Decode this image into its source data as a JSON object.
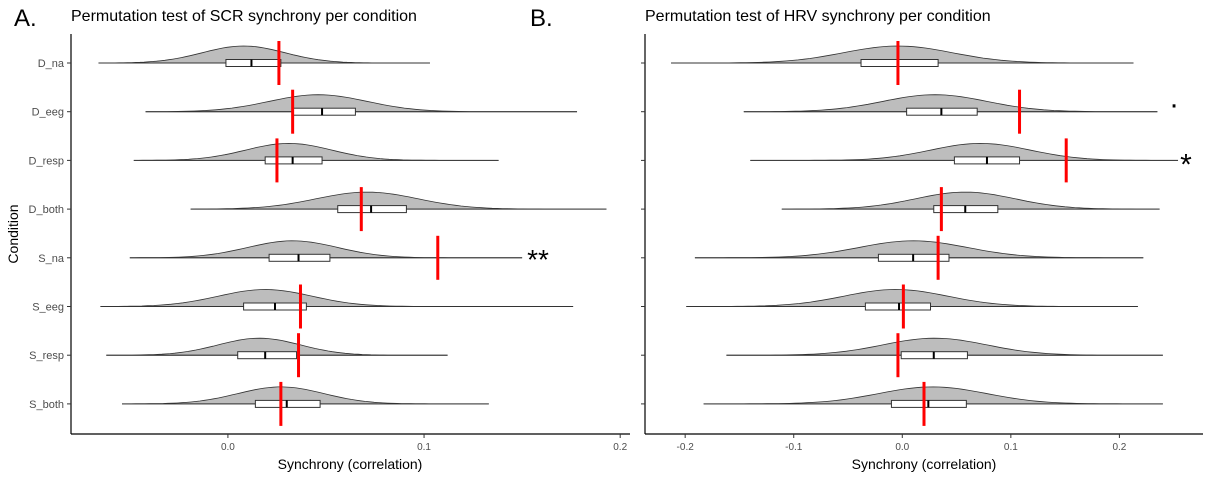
{
  "panel_labels": [
    "A.",
    "B."
  ],
  "shared_ylabel": "Condition",
  "chart_data": [
    {
      "type": "violin-boxplot",
      "title": "Permutation test of SCR synchrony per condition",
      "xlabel": "Synchrony (correlation)",
      "ylabel": "Condition",
      "categories": [
        "D_na",
        "D_eeg",
        "D_resp",
        "D_both",
        "S_na",
        "S_eeg",
        "S_resp",
        "S_both"
      ],
      "xlim": [
        -0.08,
        0.205
      ],
      "xticks": [
        0,
        0.1,
        0.2
      ],
      "xtick_labels": [
        "0.0",
        "0.1",
        "0.2"
      ],
      "grid": false,
      "null_distributions": [
        {
          "range": [
            -0.066,
            0.103
          ],
          "q1": -0.001,
          "median": 0.012,
          "q3": 0.027,
          "mode": 0.008,
          "spread": 0.021
        },
        {
          "range": [
            -0.042,
            0.178
          ],
          "q1": 0.033,
          "median": 0.048,
          "q3": 0.065,
          "mode": 0.046,
          "spread": 0.025
        },
        {
          "range": [
            -0.048,
            0.138
          ],
          "q1": 0.019,
          "median": 0.033,
          "q3": 0.048,
          "mode": 0.031,
          "spread": 0.022
        },
        {
          "range": [
            -0.019,
            0.193
          ],
          "q1": 0.056,
          "median": 0.073,
          "q3": 0.091,
          "mode": 0.071,
          "spread": 0.026
        },
        {
          "range": [
            -0.05,
            0.15
          ],
          "q1": 0.021,
          "median": 0.036,
          "q3": 0.052,
          "mode": 0.033,
          "spread": 0.023
        },
        {
          "range": [
            -0.065,
            0.176
          ],
          "q1": 0.008,
          "median": 0.024,
          "q3": 0.04,
          "mode": 0.019,
          "spread": 0.024
        },
        {
          "range": [
            -0.062,
            0.112
          ],
          "q1": 0.005,
          "median": 0.019,
          "q3": 0.035,
          "mode": 0.016,
          "spread": 0.021
        },
        {
          "range": [
            -0.054,
            0.133
          ],
          "q1": 0.014,
          "median": 0.03,
          "q3": 0.047,
          "mode": 0.027,
          "spread": 0.022
        }
      ],
      "observed_values": [
        0.026,
        0.033,
        0.025,
        0.068,
        0.107,
        0.037,
        0.036,
        0.027
      ],
      "significance": [
        {
          "category": "S_na",
          "label": "**"
        }
      ],
      "colors": {
        "violin_fill": "#bdbdbd",
        "violin_stroke": "#333333",
        "observed": "#ff0000",
        "box_fill": "#ffffff"
      }
    },
    {
      "type": "violin-boxplot",
      "title": "Permutation test of HRV synchrony per condition",
      "xlabel": "Synchrony (correlation)",
      "ylabel": "",
      "categories": [
        "D_na",
        "D_eeg",
        "D_resp",
        "D_both",
        "S_na",
        "S_eeg",
        "S_resp",
        "S_both"
      ],
      "xlim": [
        -0.237,
        0.277
      ],
      "xticks": [
        -0.2,
        -0.1,
        0,
        0.1,
        0.2
      ],
      "xtick_labels": [
        "-0.2",
        "-0.1",
        "0.0",
        "0.1",
        "0.2"
      ],
      "grid": false,
      "null_distributions": [
        {
          "range": [
            -0.213,
            0.213
          ],
          "q1": -0.038,
          "median": -0.004,
          "q3": 0.033,
          "mode": -0.004,
          "spread": 0.05
        },
        {
          "range": [
            -0.146,
            0.235
          ],
          "q1": 0.004,
          "median": 0.036,
          "q3": 0.069,
          "mode": 0.03,
          "spread": 0.048
        },
        {
          "range": [
            -0.14,
            0.254
          ],
          "q1": 0.048,
          "median": 0.078,
          "q3": 0.108,
          "mode": 0.072,
          "spread": 0.046
        },
        {
          "range": [
            -0.111,
            0.237
          ],
          "q1": 0.029,
          "median": 0.058,
          "q3": 0.088,
          "mode": 0.058,
          "spread": 0.046
        },
        {
          "range": [
            -0.191,
            0.222
          ],
          "q1": -0.022,
          "median": 0.01,
          "q3": 0.043,
          "mode": 0.01,
          "spread": 0.05
        },
        {
          "range": [
            -0.199,
            0.217
          ],
          "q1": -0.034,
          "median": -0.003,
          "q3": 0.026,
          "mode": -0.006,
          "spread": 0.048
        },
        {
          "range": [
            -0.162,
            0.24
          ],
          "q1": -0.001,
          "median": 0.029,
          "q3": 0.06,
          "mode": 0.03,
          "spread": 0.048
        },
        {
          "range": [
            -0.183,
            0.24
          ],
          "q1": -0.01,
          "median": 0.024,
          "q3": 0.059,
          "mode": 0.028,
          "spread": 0.05
        }
      ],
      "observed_values": [
        -0.004,
        0.108,
        0.151,
        0.036,
        0.033,
        0.001,
        -0.004,
        0.02
      ],
      "significance": [
        {
          "category": "D_eeg",
          "label": "."
        },
        {
          "category": "D_resp",
          "label": "*"
        }
      ],
      "colors": {
        "violin_fill": "#bdbdbd",
        "violin_stroke": "#333333",
        "observed": "#ff0000",
        "box_fill": "#ffffff"
      }
    }
  ]
}
